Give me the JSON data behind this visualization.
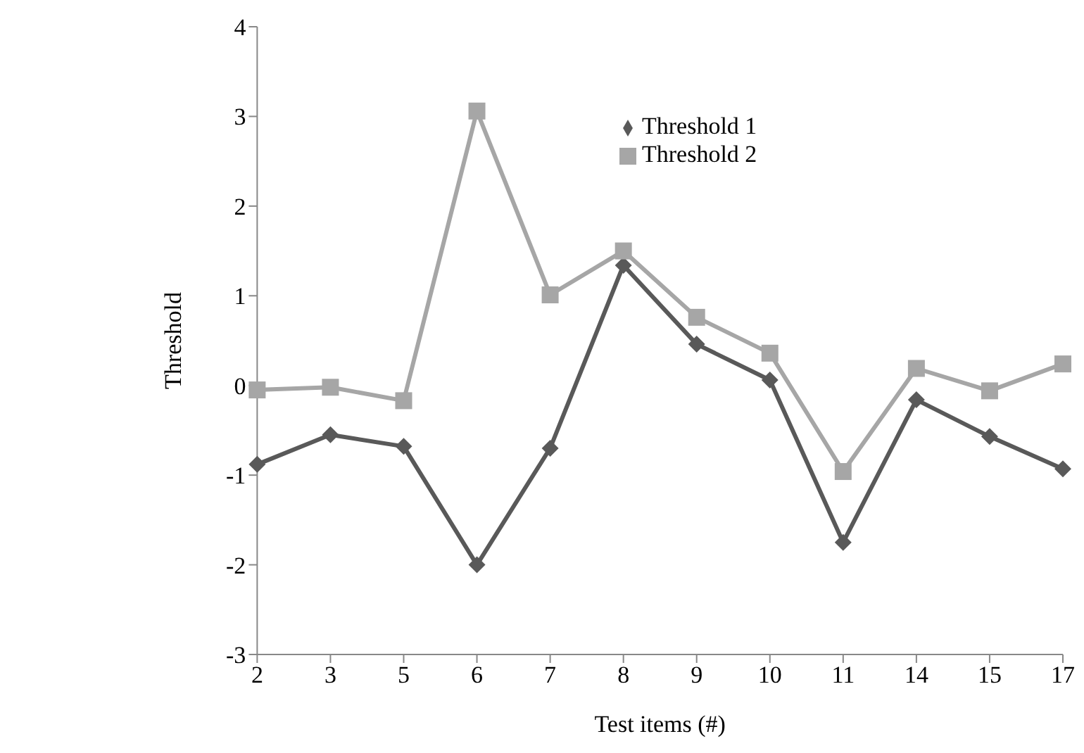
{
  "chart_data": {
    "type": "line",
    "xlabel": "Test items (#)",
    "ylabel": "Threshold",
    "categories": [
      "2",
      "3",
      "5",
      "6",
      "7",
      "8",
      "9",
      "10",
      "11",
      "14",
      "15",
      "17"
    ],
    "series": [
      {
        "name": "Threshold 1",
        "color": "#595959",
        "marker": "diamond",
        "values": [
          -0.88,
          -0.55,
          -0.68,
          -2.0,
          -0.7,
          1.34,
          0.46,
          0.06,
          -1.75,
          -0.16,
          -0.57,
          -0.93
        ]
      },
      {
        "name": "Threshold 2",
        "color": "#a6a6a6",
        "marker": "square",
        "values": [
          -0.05,
          -0.02,
          -0.17,
          3.06,
          1.01,
          1.5,
          0.76,
          0.36,
          -0.96,
          0.19,
          -0.06,
          0.24
        ]
      }
    ],
    "ylim": [
      -3,
      4
    ],
    "yticks": [
      -3,
      -2,
      -1,
      0,
      1,
      2,
      3,
      4
    ],
    "grid": false,
    "legend": "top right",
    "line_style": "solid"
  }
}
